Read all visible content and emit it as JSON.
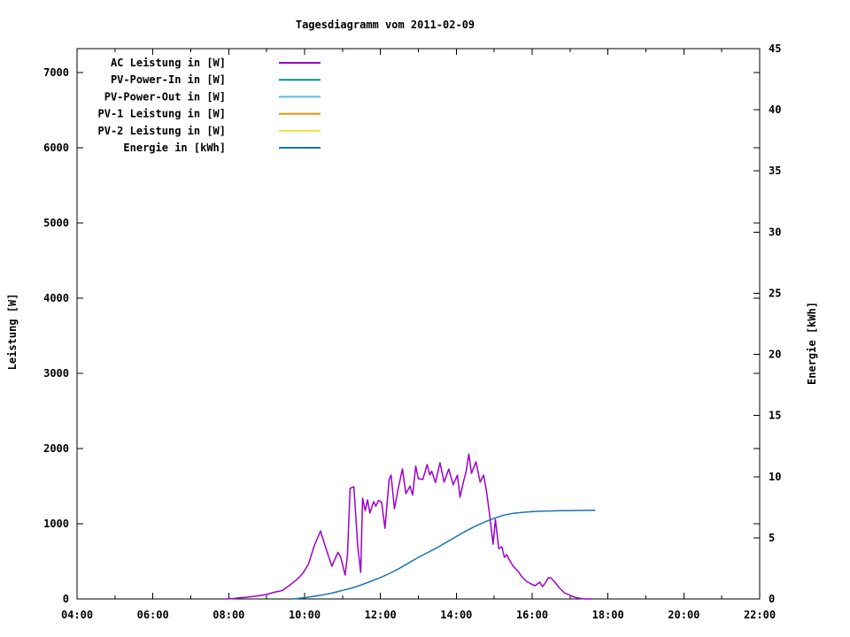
{
  "title": "Tagesdiagramm vom 2011-02-09",
  "axes": {
    "y1_title": "Leistung [W]",
    "y2_title": "Energie [kWh]"
  },
  "chart_data": {
    "type": "line",
    "title": "Tagesdiagramm vom 2011-02-09",
    "grid": false,
    "legend_position": "top-left-inside",
    "x_axis": {
      "unit": "time of day",
      "range_hours": [
        4,
        22
      ],
      "major_tick_hours": 2,
      "minor_tick_hours": 1,
      "tick_labels": [
        "04:00",
        "06:00",
        "08:00",
        "10:00",
        "12:00",
        "14:00",
        "16:00",
        "18:00",
        "20:00",
        "22:00"
      ]
    },
    "y1_axis": {
      "label": "Leistung [W]",
      "range": [
        0,
        7320
      ],
      "ticks": [
        0,
        1000,
        2000,
        3000,
        4000,
        5000,
        6000,
        7000
      ]
    },
    "y2_axis": {
      "label": "Energie [kWh]",
      "range": [
        0,
        45
      ],
      "ticks": [
        0,
        5,
        10,
        15,
        20,
        25,
        30,
        35,
        40,
        45
      ]
    },
    "series": [
      {
        "name": "AC Leistung in [W]",
        "color": "#9C00CC",
        "axis": "y1",
        "points": [
          [
            7.9,
            0
          ],
          [
            8.1,
            5
          ],
          [
            8.3,
            15
          ],
          [
            8.5,
            25
          ],
          [
            8.75,
            40
          ],
          [
            9.0,
            60
          ],
          [
            9.2,
            90
          ],
          [
            9.4,
            110
          ],
          [
            9.6,
            180
          ],
          [
            9.8,
            260
          ],
          [
            9.95,
            340
          ],
          [
            10.1,
            460
          ],
          [
            10.25,
            700
          ],
          [
            10.42,
            905
          ],
          [
            10.55,
            690
          ],
          [
            10.72,
            435
          ],
          [
            10.88,
            620
          ],
          [
            10.95,
            560
          ],
          [
            11.07,
            318
          ],
          [
            11.13,
            576
          ],
          [
            11.2,
            1470
          ],
          [
            11.3,
            1494
          ],
          [
            11.4,
            700
          ],
          [
            11.48,
            353
          ],
          [
            11.53,
            1340
          ],
          [
            11.6,
            1176
          ],
          [
            11.66,
            1318
          ],
          [
            11.72,
            1141
          ],
          [
            11.82,
            1294
          ],
          [
            11.88,
            1235
          ],
          [
            11.95,
            1310
          ],
          [
            12.03,
            1290
          ],
          [
            12.12,
            940
          ],
          [
            12.23,
            1590
          ],
          [
            12.28,
            1647
          ],
          [
            12.37,
            1200
          ],
          [
            12.47,
            1470
          ],
          [
            12.58,
            1730
          ],
          [
            12.67,
            1400
          ],
          [
            12.78,
            1500
          ],
          [
            12.85,
            1380
          ],
          [
            12.93,
            1765
          ],
          [
            13.0,
            1600
          ],
          [
            13.12,
            1590
          ],
          [
            13.23,
            1788
          ],
          [
            13.3,
            1650
          ],
          [
            13.35,
            1700
          ],
          [
            13.45,
            1550
          ],
          [
            13.57,
            1812
          ],
          [
            13.68,
            1553
          ],
          [
            13.8,
            1729
          ],
          [
            13.92,
            1518
          ],
          [
            14.03,
            1647
          ],
          [
            14.1,
            1353
          ],
          [
            14.17,
            1518
          ],
          [
            14.26,
            1700
          ],
          [
            14.33,
            1929
          ],
          [
            14.4,
            1671
          ],
          [
            14.52,
            1824
          ],
          [
            14.63,
            1553
          ],
          [
            14.72,
            1647
          ],
          [
            14.8,
            1420
          ],
          [
            14.88,
            1118
          ],
          [
            14.97,
            729
          ],
          [
            15.03,
            1059
          ],
          [
            15.12,
            670
          ],
          [
            15.2,
            694
          ],
          [
            15.27,
            553
          ],
          [
            15.33,
            588
          ],
          [
            15.4,
            518
          ],
          [
            15.5,
            435
          ],
          [
            15.62,
            376
          ],
          [
            15.73,
            294
          ],
          [
            15.85,
            235
          ],
          [
            15.97,
            200
          ],
          [
            16.08,
            176
          ],
          [
            16.2,
            224
          ],
          [
            16.27,
            165
          ],
          [
            16.33,
            200
          ],
          [
            16.43,
            282
          ],
          [
            16.5,
            278
          ],
          [
            16.6,
            224
          ],
          [
            16.73,
            141
          ],
          [
            16.85,
            82
          ],
          [
            17.0,
            47
          ],
          [
            17.12,
            24
          ],
          [
            17.25,
            8
          ],
          [
            17.4,
            0
          ],
          [
            17.58,
            0
          ]
        ]
      },
      {
        "name": "PV-Power-In in [W]",
        "color": "#009980",
        "axis": "y1",
        "points": []
      },
      {
        "name": "PV-Power-Out in [W]",
        "color": "#5CB8E8",
        "axis": "y1",
        "points": []
      },
      {
        "name": "PV-1 Leistung in [W]",
        "color": "#DE9400",
        "axis": "y1",
        "points": []
      },
      {
        "name": "PV-2 Leistung in [W]",
        "color": "#EEE136",
        "axis": "y1",
        "points": []
      },
      {
        "name": "Energie in [kWh]",
        "color": "#1874B4",
        "axis": "y2",
        "points": [
          [
            9.7,
            0
          ],
          [
            9.85,
            0.05
          ],
          [
            10.0,
            0.1
          ],
          [
            10.25,
            0.22
          ],
          [
            10.5,
            0.35
          ],
          [
            10.75,
            0.5
          ],
          [
            11.0,
            0.7
          ],
          [
            11.25,
            0.9
          ],
          [
            11.5,
            1.15
          ],
          [
            11.75,
            1.45
          ],
          [
            12.0,
            1.75
          ],
          [
            12.25,
            2.1
          ],
          [
            12.5,
            2.5
          ],
          [
            12.75,
            2.95
          ],
          [
            13.0,
            3.4
          ],
          [
            13.25,
            3.8
          ],
          [
            13.5,
            4.2
          ],
          [
            13.75,
            4.65
          ],
          [
            14.0,
            5.1
          ],
          [
            14.25,
            5.55
          ],
          [
            14.5,
            5.95
          ],
          [
            14.75,
            6.3
          ],
          [
            15.0,
            6.6
          ],
          [
            15.25,
            6.85
          ],
          [
            15.5,
            7.0
          ],
          [
            15.75,
            7.08
          ],
          [
            16.0,
            7.15
          ],
          [
            16.25,
            7.18
          ],
          [
            16.5,
            7.2
          ],
          [
            16.75,
            7.22
          ],
          [
            17.0,
            7.23
          ],
          [
            17.3,
            7.24
          ],
          [
            17.65,
            7.25
          ]
        ]
      }
    ]
  },
  "colors": {
    "background": "#ffffff",
    "axis": "#000000",
    "text": "#000000"
  }
}
